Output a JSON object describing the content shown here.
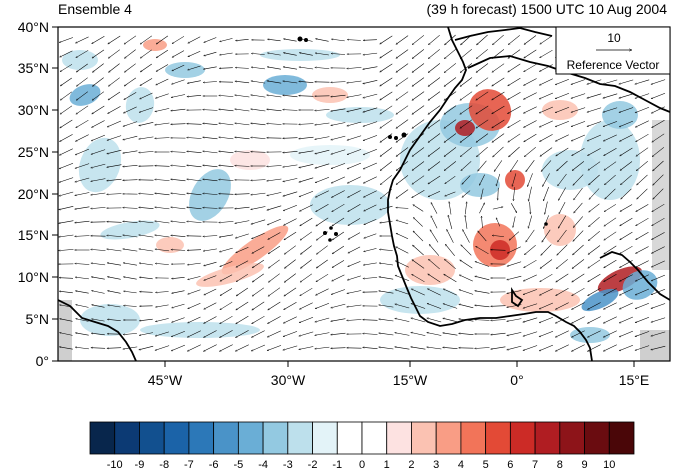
{
  "header": {
    "left_title": "Ensemble 4",
    "right_title": "(39 h forecast) 1500 UTC 10 Aug 2004"
  },
  "map": {
    "lat_ticks": [
      "40°N",
      "35°N",
      "30°N",
      "25°N",
      "20°N",
      "15°N",
      "10°N",
      "5°N",
      "0°"
    ],
    "lon_ticks": [
      "45°W",
      "30°W",
      "15°W",
      "0°",
      "15°E"
    ]
  },
  "reference_vector": {
    "magnitude": "10",
    "label": "Reference Vector"
  },
  "colorbar": {
    "levels": [
      "-10",
      "-9",
      "-8",
      "-7",
      "-6",
      "-5",
      "-4",
      "-3",
      "-2",
      "-1",
      "0",
      "1",
      "2",
      "3",
      "4",
      "5",
      "6",
      "7",
      "8",
      "9",
      "10"
    ],
    "colors": [
      "#08264c",
      "#0c3a74",
      "#12508f",
      "#1b63a8",
      "#2c78b8",
      "#4a93c8",
      "#6aaed6",
      "#93c9e1",
      "#bde0ec",
      "#e3f3f8",
      "#ffffff",
      "#ffffff",
      "#fde2e1",
      "#fbc2b2",
      "#f99d85",
      "#f27459",
      "#e34a36",
      "#cc2b26",
      "#b01d22",
      "#8d1419",
      "#6a0c10",
      "#4a0608"
    ]
  }
}
